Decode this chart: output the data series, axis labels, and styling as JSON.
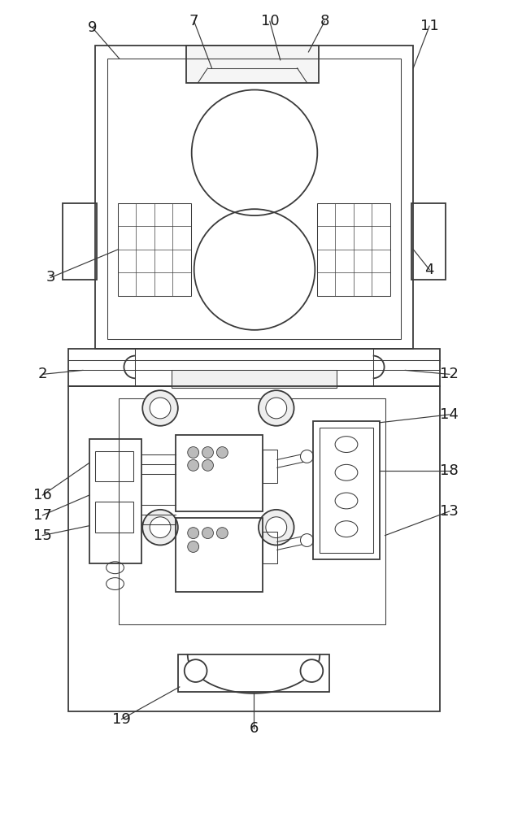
{
  "fig_width": 6.26,
  "fig_height": 10.0,
  "dpi": 100,
  "bg_color": "#ffffff",
  "lc": "#3a3a3a",
  "lw": 1.3,
  "tlw": 0.75,
  "xlim": [
    0,
    626
  ],
  "ylim": [
    0,
    1000
  ]
}
